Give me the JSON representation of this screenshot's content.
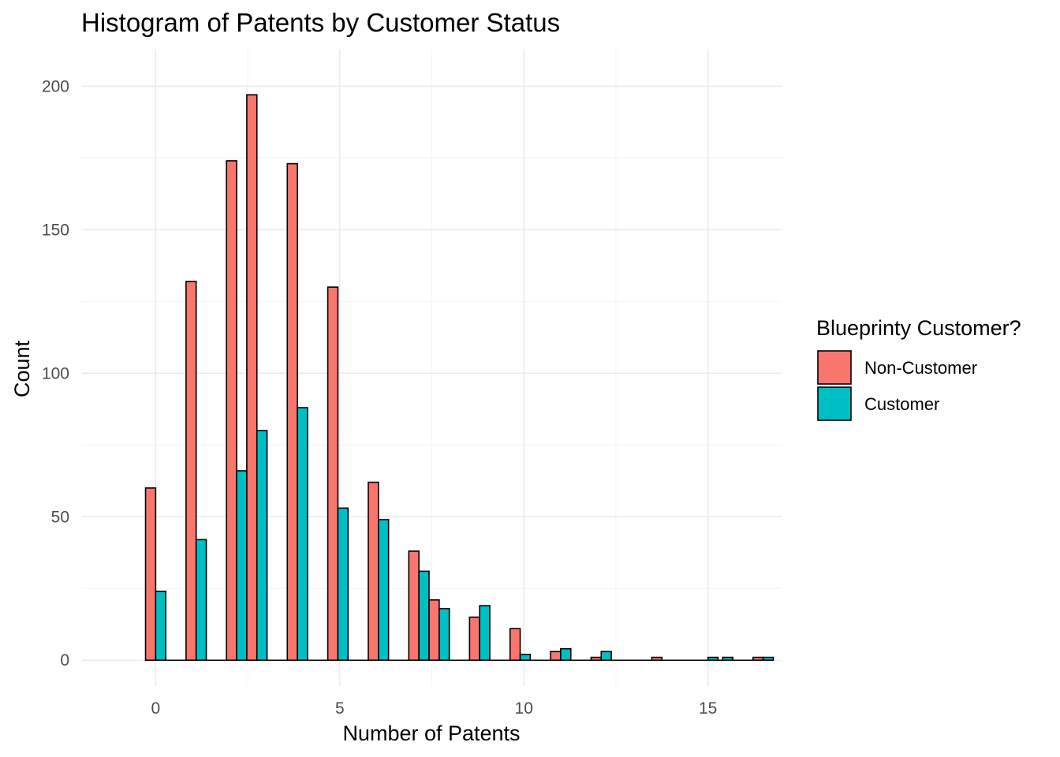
{
  "chart_data": {
    "type": "bar",
    "title": "Histogram of Patents by Customer Status",
    "xlabel": "Number of Patents",
    "ylabel": "Count",
    "xlim": [
      -2,
      17
    ],
    "ylim": [
      -9,
      213
    ],
    "x_ticks": [
      0,
      5,
      10,
      15
    ],
    "y_ticks": [
      0,
      50,
      100,
      150,
      200
    ],
    "grid": true,
    "legend": {
      "title": "Blueprinty Customer?",
      "position": "right"
    },
    "bin_centers": [
      0,
      1.1,
      2.2,
      2.75,
      3.85,
      4.95,
      6.05,
      7.15,
      7.7,
      8.8,
      9.9,
      11,
      12.1,
      13.75,
      15.4,
      16.5
    ],
    "series": [
      {
        "name": "Non-Customer",
        "color": "#F8766D",
        "values": [
          60,
          132,
          174,
          197,
          173,
          130,
          62,
          38,
          21,
          15,
          11,
          3,
          1,
          0,
          0,
          1
        ]
      },
      {
        "name": "Customer",
        "color": "#00BFC4",
        "values": [
          24,
          42,
          66,
          80,
          88,
          53,
          49,
          31,
          18,
          19,
          2,
          4,
          3,
          0,
          1,
          1
        ]
      }
    ],
    "extra_bars": [
      {
        "series": "Non-Customer",
        "x": 13.75,
        "value": 1
      },
      {
        "series": "Customer",
        "x": 15.0,
        "value": 1
      }
    ]
  }
}
